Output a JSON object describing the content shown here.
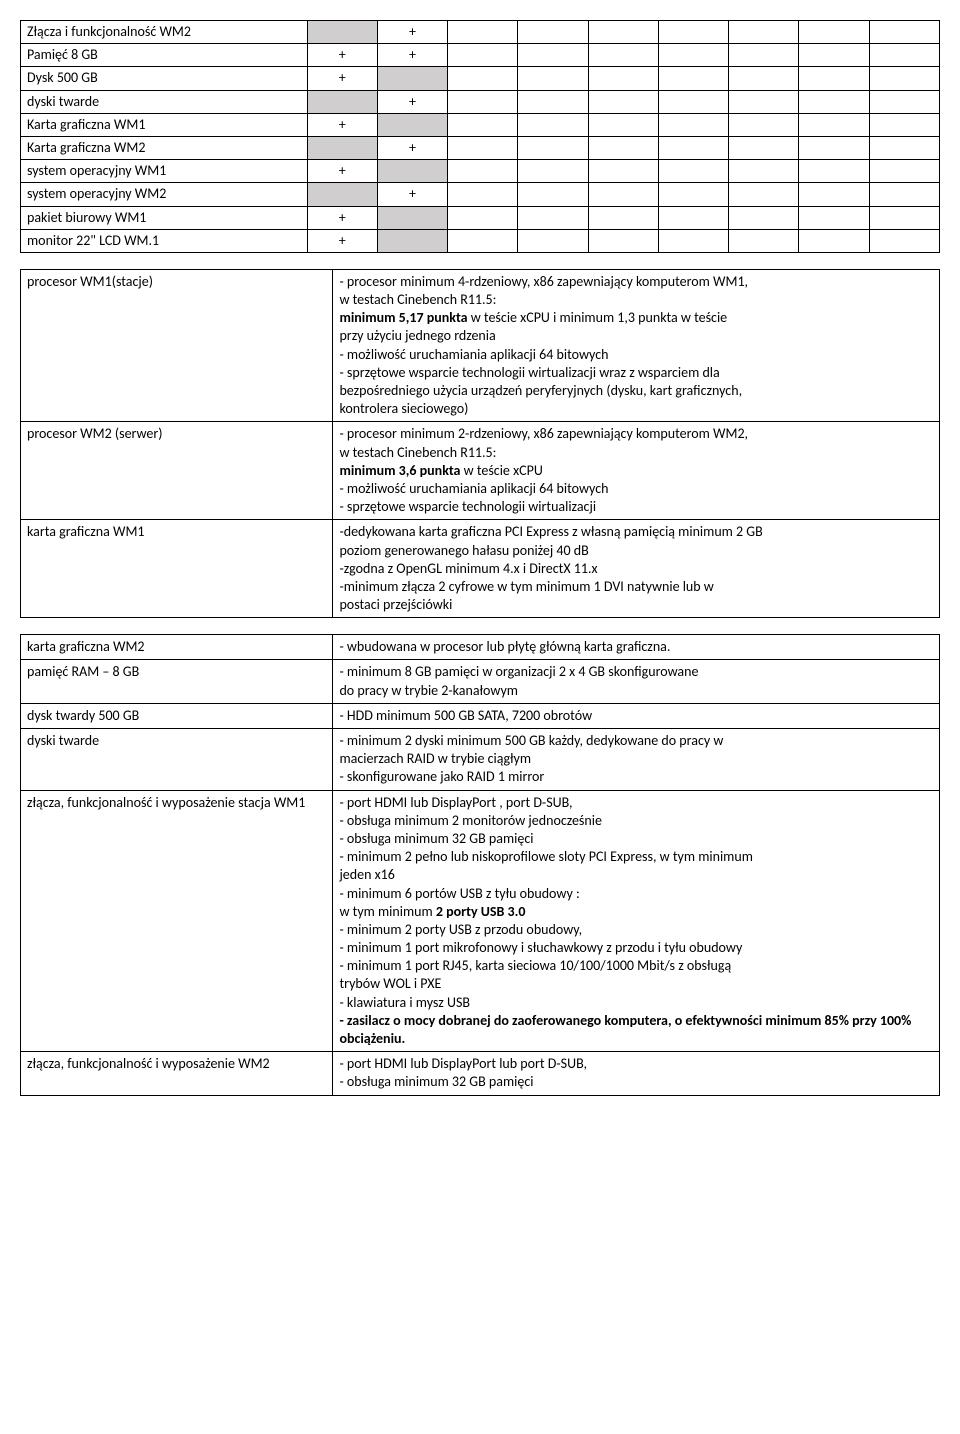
{
  "matrix": {
    "rows": [
      {
        "label": "Złącza i funkcjonalność WM2",
        "cells": [
          "grey",
          "+",
          "",
          "",
          "",
          "",
          "",
          "",
          ""
        ]
      },
      {
        "label": "Pamięć  8 GB",
        "cells": [
          "+",
          "+",
          "",
          "",
          "",
          "",
          "",
          "",
          ""
        ]
      },
      {
        "label": "Dysk 500 GB",
        "cells": [
          "+",
          "grey",
          "",
          "",
          "",
          "",
          "",
          "",
          ""
        ]
      },
      {
        "label": "dyski twarde",
        "cells": [
          "grey",
          "+",
          "",
          "",
          "",
          "",
          "",
          "",
          ""
        ]
      },
      {
        "label": "Karta graficzna WM1",
        "cells": [
          "+",
          "grey",
          "",
          "",
          "",
          "",
          "",
          "",
          ""
        ]
      },
      {
        "label": "Karta graficzna WM2",
        "cells": [
          "grey",
          "+",
          "",
          "",
          "",
          "",
          "",
          "",
          ""
        ]
      },
      {
        "label": "system  operacyjny WM1",
        "cells": [
          "+",
          "grey",
          "",
          "",
          "",
          "",
          "",
          "",
          ""
        ]
      },
      {
        "label": "system operacyjny WM2",
        "cells": [
          "grey",
          "+",
          "",
          "",
          "",
          "",
          "",
          "",
          ""
        ]
      },
      {
        "label": "pakiet biurowy WM1",
        "cells": [
          "+",
          "grey",
          "",
          "",
          "",
          "",
          "",
          "",
          ""
        ]
      },
      {
        "label": "monitor 22\" LCD WM.1",
        "cells": [
          "+",
          "grey",
          "",
          "",
          "",
          "",
          "",
          "",
          ""
        ]
      }
    ]
  },
  "spec1": [
    {
      "left": "procesor WM1(stacje)",
      "right": [
        {
          "t": "- procesor minimum 4-rdzeniowy, x86 zapewniający komputerom WM1,"
        },
        {
          "t": "  w testach Cinebench R11.5:"
        },
        {
          "t": "  minimum 5,17 punkta",
          "bold_prefix": true,
          "rest": "  w teście xCPU i minimum 1,3 punkta w teście"
        },
        {
          "t": "  przy użyciu jednego rdzenia"
        },
        {
          "t": "- możliwość uruchamiania aplikacji 64 bitowych"
        },
        {
          "t": "- sprzętowe wsparcie technologii wirtualizacji wraz z wsparciem dla"
        },
        {
          "t": "  bezpośredniego użycia urządzeń peryferyjnych (dysku, kart graficznych,"
        },
        {
          "t": "  kontrolera sieciowego)"
        }
      ]
    },
    {
      "left": "procesor WM2 (serwer)",
      "right": [
        {
          "t": "- procesor minimum 2-rdzeniowy, x86 zapewniający komputerom WM2,"
        },
        {
          "t": "  w testach Cinebench R11.5:"
        },
        {
          "t": "  minimum 3,6 punkta",
          "bold_prefix": true,
          "rest": "  w teście xCPU"
        },
        {
          "t": "- możliwość uruchamiania aplikacji 64 bitowych"
        },
        {
          "t": "- sprzętowe wsparcie technologii wirtualizacji"
        }
      ]
    },
    {
      "left": "karta graficzna WM1",
      "right": [
        {
          "t": "-dedykowana  karta graficzna PCI Express  z własną pamięcią minimum 2 GB"
        },
        {
          "t": "  poziom generowanego hałasu poniżej 40 dB"
        },
        {
          "t": "-zgodna z OpenGL minimum 4.x i DirectX 11.x"
        },
        {
          "t": "-minimum  złącza 2 cyfrowe w tym minimum 1 DVI natywnie lub w"
        },
        {
          "t": "  postaci  przejściówki"
        }
      ]
    }
  ],
  "spec2": [
    {
      "left": "karta graficzna WM2",
      "right": [
        {
          "t": "- wbudowana w procesor lub płytę główną karta graficzna."
        }
      ]
    },
    {
      "left": "pamięć RAM – 8 GB",
      "right": [
        {
          "t": "- minimum 8 GB pamięci w organizacji 2 x 4 GB skonfigurowane"
        },
        {
          "t": "  do pracy w trybie 2-kanałowym"
        }
      ]
    },
    {
      "left": "dysk twardy 500 GB",
      "right": [
        {
          "t": "- HDD minimum 500 GB SATA, 7200 obrotów"
        }
      ]
    },
    {
      "left": "dyski twarde",
      "right": [
        {
          "t": "- minimum 2 dyski minimum 500 GB każdy, dedykowane do pracy w"
        },
        {
          "t": "macierzach RAID w trybie ciągłym"
        },
        {
          "t": "- skonfigurowane jako RAID 1 mirror"
        }
      ]
    },
    {
      "left": "złącza, funkcjonalność i wyposażenie stacja WM1",
      "right": [
        {
          "t": "- port HDMI lub DisplayPort ,  port D-SUB,"
        },
        {
          "t": "- obsługa minimum 2 monitorów jednocześnie"
        },
        {
          "t": "- obsługa minimum 32 GB pamięci"
        },
        {
          "t": "- minimum 2  pełno lub niskoprofilowe sloty PCI Express, w tym minimum"
        },
        {
          "t": "jeden x16"
        },
        {
          "t": "- minimum 6 portów  USB z tyłu obudowy :"
        },
        {
          "inline": [
            {
              "txt": "  w tym minimum "
            },
            {
              "txt": "2 porty USB 3.0",
              "bold": true
            }
          ]
        },
        {
          "t": "- minimum 2 porty USB z przodu obudowy,"
        },
        {
          "t": "- minimum 1 port mikrofonowy i słuchawkowy z przodu i tyłu obudowy"
        },
        {
          "t": "- minimum 1 port RJ45, karta sieciowa 10/100/1000 Mbit/s z obsługą"
        },
        {
          "t": "  trybów WOL i PXE"
        },
        {
          "t": "- klawiatura i  mysz  USB"
        },
        {
          "inline": [
            {
              "txt": "- zasilacz o mocy dobranej do zaoferowanego komputera, o efektywności minimum 85% przy 100% obciążeniu.",
              "bold": true
            }
          ]
        }
      ]
    },
    {
      "left": "złącza, funkcjonalność i wyposażenie WM2",
      "right": [
        {
          "t": "- port HDMI lub DisplayPort  lub port D-SUB,"
        },
        {
          "t": "- obsługa minimum 32 GB pamięci"
        }
      ]
    }
  ]
}
